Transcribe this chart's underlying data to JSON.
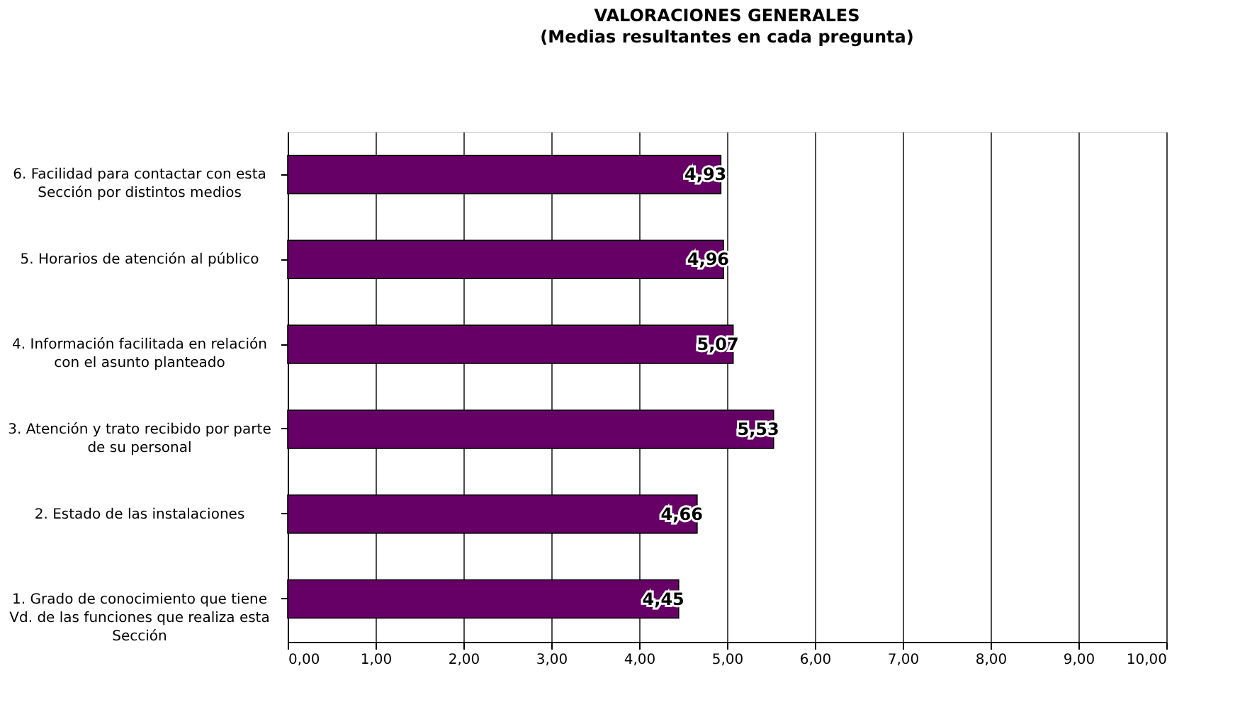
{
  "chart_data": {
    "type": "bar",
    "orientation": "horizontal",
    "title": "VALORACIONES GENERALES",
    "subtitle": "(Medias resultantes en cada pregunta)",
    "categories": [
      "6. Facilidad para contactar con esta\nSección por distintos medios",
      "5. Horarios de atención al público",
      "4. Información facilitada en relación\ncon el asunto planteado",
      "3. Atención y trato recibido por parte\nde su personal",
      "2. Estado de las instalaciones",
      "1. Grado de conocimiento que tiene\nVd. de las funciones que realiza esta\nSección"
    ],
    "values": [
      4.93,
      4.96,
      5.07,
      5.53,
      4.66,
      4.45
    ],
    "value_labels": [
      "4,93",
      "4,96",
      "5,07",
      "5,53",
      "4,66",
      "4,45"
    ],
    "color": "#660066",
    "xlim": [
      0,
      10
    ],
    "xticks": [
      {
        "value": 0,
        "label": "0,00"
      },
      {
        "value": 1,
        "label": "1,00"
      },
      {
        "value": 2,
        "label": "2,00"
      },
      {
        "value": 3,
        "label": "3,00"
      },
      {
        "value": 4,
        "label": "4,00"
      },
      {
        "value": 5,
        "label": "5,00"
      },
      {
        "value": 6,
        "label": "6,00"
      },
      {
        "value": 7,
        "label": "7,00"
      },
      {
        "value": 8,
        "label": "8,00"
      },
      {
        "value": 9,
        "label": "9,00"
      },
      {
        "value": 10,
        "label": "10,00"
      }
    ],
    "grid": "x"
  }
}
